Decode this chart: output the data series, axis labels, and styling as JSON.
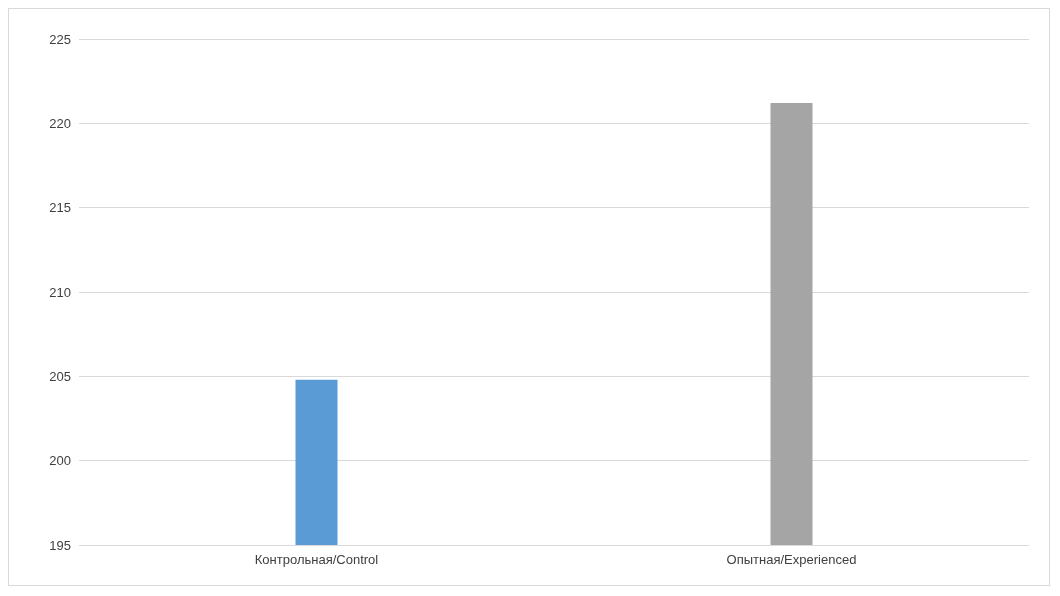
{
  "chart_data": {
    "type": "bar",
    "categories": [
      "Контрольная/Control",
      "Опытная/Experienced"
    ],
    "values": [
      204.8,
      221.2
    ],
    "colors": [
      "#5b9bd5",
      "#a5a5a5"
    ],
    "ylim": [
      195,
      225
    ],
    "yticks": [
      195,
      200,
      205,
      210,
      215,
      220,
      225
    ],
    "grid": "y"
  }
}
